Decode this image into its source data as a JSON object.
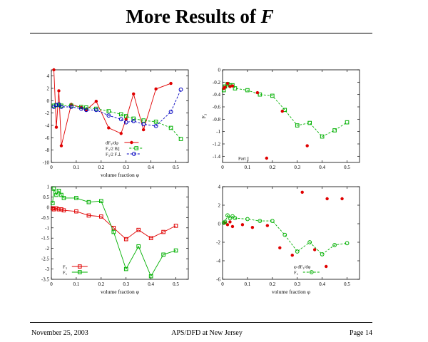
{
  "slide": {
    "title_text": "More Results of ",
    "title_var": "F",
    "footer_date": "November 25, 2003",
    "footer_venue": "APS/DFD at New Jersey",
    "footer_page": "Page 14"
  },
  "chart_data": [
    {
      "type": "line",
      "xlabel": "volume fraction φ",
      "ylabel": "",
      "xlim": [
        0,
        0.55
      ],
      "ylim": [
        -10,
        5
      ],
      "xticks": [
        0,
        0.1,
        0.2,
        0.3,
        0.4,
        0.5
      ],
      "yticks": [
        -10,
        -8,
        -6,
        -4,
        -2,
        0,
        2,
        4
      ],
      "legend": "bottom-center",
      "series": [
        {
          "name": "dF₃/dφ",
          "color": "#e00000",
          "line": "solid",
          "marker": "dot",
          "x": [
            0.01,
            0.02,
            0.03,
            0.04,
            0.08,
            0.12,
            0.14,
            0.18,
            0.23,
            0.28,
            0.3,
            0.33,
            0.37,
            0.42,
            0.48
          ],
          "y": [
            5.0,
            -4.3,
            1.6,
            -7.3,
            -0.6,
            -1.1,
            -1.5,
            -0.1,
            -4.4,
            -5.3,
            -3.0,
            1.1,
            -4.7,
            1.9,
            2.8
          ]
        },
        {
          "name": "F₃/2 B||",
          "color": "#00b000",
          "line": "dashed",
          "marker": "square",
          "x": [
            0.01,
            0.02,
            0.03,
            0.04,
            0.08,
            0.12,
            0.14,
            0.18,
            0.23,
            0.28,
            0.3,
            0.33,
            0.37,
            0.42,
            0.48,
            0.52
          ],
          "y": [
            -0.8,
            -0.7,
            -0.7,
            -0.8,
            -0.8,
            -1.0,
            -1.1,
            -1.3,
            -1.7,
            -2.2,
            -2.5,
            -2.9,
            -3.2,
            -3.4,
            -4.4,
            -6.2
          ]
        },
        {
          "name": "F₃/2 F⊥",
          "color": "#0000c0",
          "line": "dashed",
          "marker": "circle",
          "x": [
            0.01,
            0.02,
            0.03,
            0.04,
            0.08,
            0.12,
            0.14,
            0.18,
            0.23,
            0.28,
            0.3,
            0.33,
            0.37,
            0.42,
            0.48,
            0.52
          ],
          "y": [
            -1.0,
            -0.7,
            -0.6,
            -1.0,
            -1.0,
            -1.3,
            -1.5,
            -1.5,
            -2.4,
            -3.0,
            -3.5,
            -3.3,
            -3.8,
            -4.1,
            -1.8,
            1.8
          ]
        }
      ]
    },
    {
      "type": "line",
      "xlabel": "",
      "ylabel": "F₃",
      "xlim": [
        0,
        0.55
      ],
      "ylim": [
        -1.5,
        0
      ],
      "xticks": [
        0,
        0.1,
        0.2,
        0.3,
        0.4,
        0.5
      ],
      "yticks": [
        -1.4,
        -1.2,
        -1,
        -0.8,
        -0.6,
        -0.4,
        -0.2,
        0
      ],
      "legend": "bottom-left",
      "series": [
        {
          "name": "",
          "color": "#00b000",
          "line": "dashed",
          "marker": "square",
          "x": [
            0.005,
            0.01,
            0.02,
            0.03,
            0.04,
            0.05,
            0.1,
            0.15,
            0.2,
            0.25,
            0.3,
            0.35,
            0.4,
            0.45,
            0.5
          ],
          "y": [
            -0.33,
            -0.27,
            -0.23,
            -0.25,
            -0.25,
            -0.3,
            -0.33,
            -0.4,
            -0.42,
            -0.65,
            -0.9,
            -0.86,
            -1.08,
            -0.98,
            -0.85
          ]
        },
        {
          "name": "Part ||",
          "color": "#e00000",
          "line": "none",
          "marker": "dot",
          "x": [
            0.005,
            0.01,
            0.02,
            0.03,
            0.04,
            0.14,
            0.24,
            0.34
          ],
          "y": [
            -0.3,
            -0.28,
            -0.22,
            -0.27,
            -0.26,
            -0.37,
            -0.67,
            -1.23
          ]
        }
      ]
    },
    {
      "type": "line",
      "xlabel": "volume fraction φ",
      "ylabel": "",
      "xlim": [
        0,
        0.55
      ],
      "ylim": [
        -3.5,
        1
      ],
      "xticks": [
        0,
        0.1,
        0.2,
        0.3,
        0.4,
        0.5
      ],
      "yticks": [
        -3.5,
        -3,
        -2.5,
        -2,
        -1.5,
        -1,
        -0.5,
        0,
        0.5,
        1
      ],
      "legend": "bottom-left",
      "series": [
        {
          "name": "F₃",
          "color": "#e00000",
          "line": "solid",
          "marker": "square",
          "x": [
            0.005,
            0.01,
            0.02,
            0.03,
            0.04,
            0.05,
            0.1,
            0.15,
            0.2,
            0.25,
            0.3,
            0.35,
            0.4,
            0.45,
            0.5
          ],
          "y": [
            -0.05,
            -0.1,
            -0.05,
            -0.1,
            -0.1,
            -0.15,
            -0.2,
            -0.4,
            -0.45,
            -1.0,
            -1.55,
            -1.1,
            -1.5,
            -1.2,
            -0.9
          ]
        },
        {
          "name": "F₅",
          "color": "#00b000",
          "line": "solid",
          "marker": "square",
          "x": [
            0.005,
            0.01,
            0.02,
            0.03,
            0.04,
            0.05,
            0.1,
            0.15,
            0.2,
            0.25,
            0.3,
            0.35,
            0.4,
            0.45,
            0.5
          ],
          "y": [
            0.2,
            0.9,
            0.6,
            0.8,
            0.6,
            0.45,
            0.45,
            0.25,
            0.3,
            -1.2,
            -3.0,
            -1.9,
            -3.35,
            -2.3,
            -2.1
          ]
        }
      ]
    },
    {
      "type": "line",
      "xlabel": "volume fraction φ",
      "ylabel": "",
      "xlim": [
        0,
        0.55
      ],
      "ylim": [
        -6,
        4
      ],
      "xticks": [
        0,
        0.1,
        0.2,
        0.3,
        0.4,
        0.5
      ],
      "yticks": [
        -6,
        -4,
        -2,
        0,
        2,
        4
      ],
      "legend": "bottom-right",
      "series": [
        {
          "name": "φ dF₃/dφ",
          "color": "#e00000",
          "line": "none",
          "marker": "dot",
          "x": [
            0.01,
            0.02,
            0.03,
            0.04,
            0.08,
            0.12,
            0.18,
            0.23,
            0.28,
            0.32,
            0.37,
            0.42,
            0.48
          ],
          "y": [
            0.1,
            -0.1,
            0.2,
            -0.3,
            -0.1,
            -0.4,
            -0.2,
            -2.6,
            -3.4,
            3.4,
            -2.8,
            2.7,
            2.7
          ]
        },
        {
          "name": "F₅",
          "color": "#00b000",
          "line": "dashed",
          "marker": "circle",
          "x": [
            0.005,
            0.01,
            0.02,
            0.03,
            0.04,
            0.05,
            0.1,
            0.15,
            0.2,
            0.25,
            0.3,
            0.35,
            0.4,
            0.45,
            0.5
          ],
          "y": [
            0.1,
            0.2,
            0.9,
            0.6,
            0.8,
            0.6,
            0.5,
            0.3,
            0.3,
            -1.2,
            -3.0,
            -2.0,
            -3.3,
            -2.3,
            -2.1
          ]
        }
      ]
    }
  ]
}
